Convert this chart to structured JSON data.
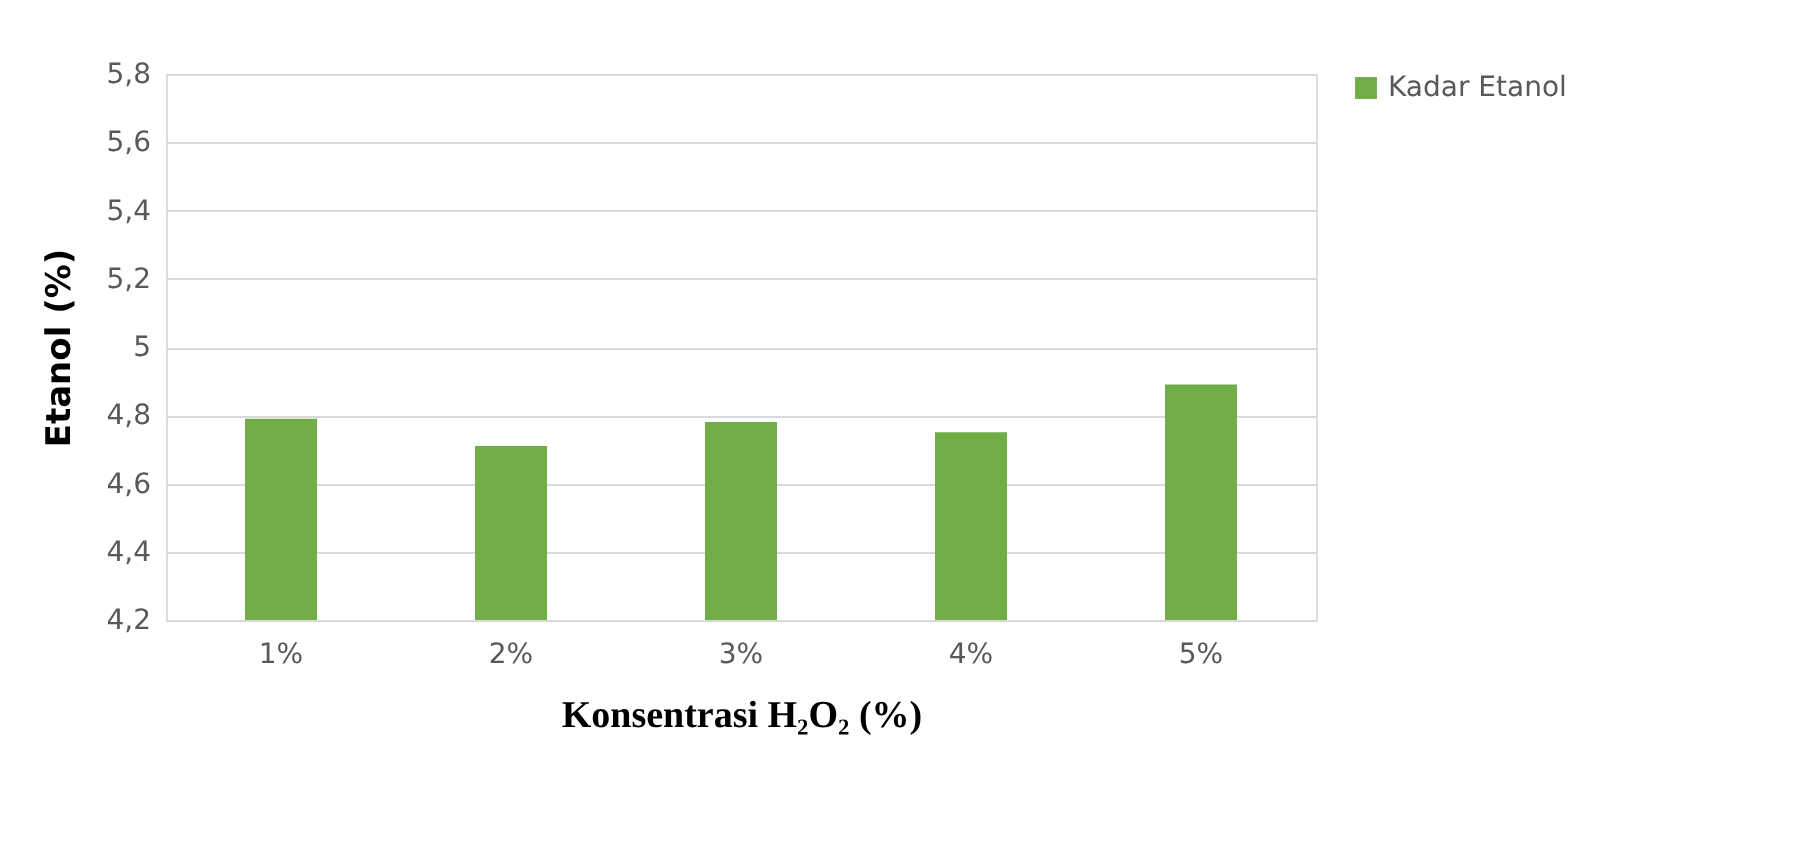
{
  "chart_data": {
    "type": "bar",
    "xlabel": "Konsentrasi H₂O₂ (%)",
    "ylabel": "Etanol (%)",
    "categories": [
      "1%",
      "2%",
      "3%",
      "4%",
      "5%"
    ],
    "series": [
      {
        "name": "Kadar Etanol",
        "color": "#70ad47",
        "values": [
          4.79,
          4.71,
          4.78,
          4.75,
          4.89
        ]
      }
    ],
    "ylim": [
      4.2,
      5.8
    ],
    "yticks": [
      {
        "value": 4.2,
        "label": "4,2"
      },
      {
        "value": 4.4,
        "label": "4,4"
      },
      {
        "value": 4.6,
        "label": "4,6"
      },
      {
        "value": 4.8,
        "label": "4,8"
      },
      5,
      {
        "value": 5.2,
        "label": "5,2"
      },
      {
        "value": 5.4,
        "label": "5,4"
      },
      {
        "value": 5.6,
        "label": "5,6"
      },
      {
        "value": 5.8,
        "label": "5,8"
      }
    ],
    "grid": "y",
    "legend": "right"
  }
}
